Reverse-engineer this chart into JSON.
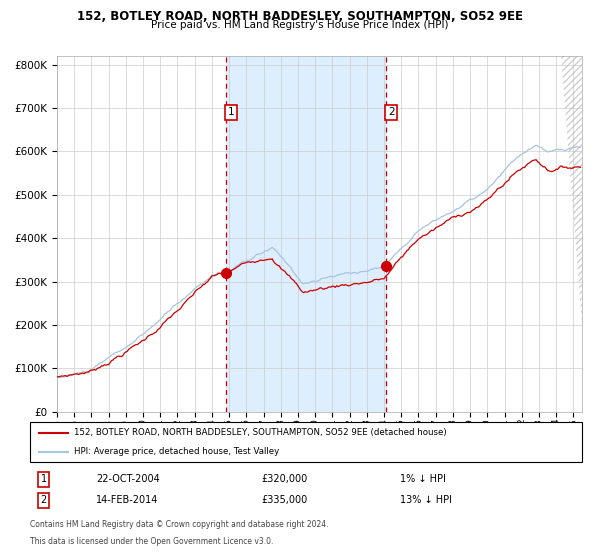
{
  "title": "152, BOTLEY ROAD, NORTH BADDESLEY, SOUTHAMPTON, SO52 9EE",
  "subtitle": "Price paid vs. HM Land Registry's House Price Index (HPI)",
  "legend_line1": "152, BOTLEY ROAD, NORTH BADDESLEY, SOUTHAMPTON, SO52 9EE (detached house)",
  "legend_line2": "HPI: Average price, detached house, Test Valley",
  "annotation1_label": "1",
  "annotation1_date": "22-OCT-2004",
  "annotation1_price": "£320,000",
  "annotation1_note": "1% ↓ HPI",
  "annotation2_label": "2",
  "annotation2_date": "14-FEB-2014",
  "annotation2_price": "£335,000",
  "annotation2_note": "13% ↓ HPI",
  "footnote1": "Contains HM Land Registry data © Crown copyright and database right 2024.",
  "footnote2": "This data is licensed under the Open Government Licence v3.0.",
  "sale1_year": 2004.81,
  "sale1_value": 320000,
  "sale2_year": 2014.12,
  "sale2_value": 335000,
  "hpi_color": "#a8c4e0",
  "price_color": "#cc0000",
  "dot_color": "#cc0000",
  "shade_color": "#ddeeff",
  "vline_color": "#cc0000",
  "grid_color": "#cccccc",
  "bg_color": "#ffffff",
  "ylim": [
    0,
    820000
  ],
  "xlim_start": 1995.0,
  "xlim_end": 2025.5
}
